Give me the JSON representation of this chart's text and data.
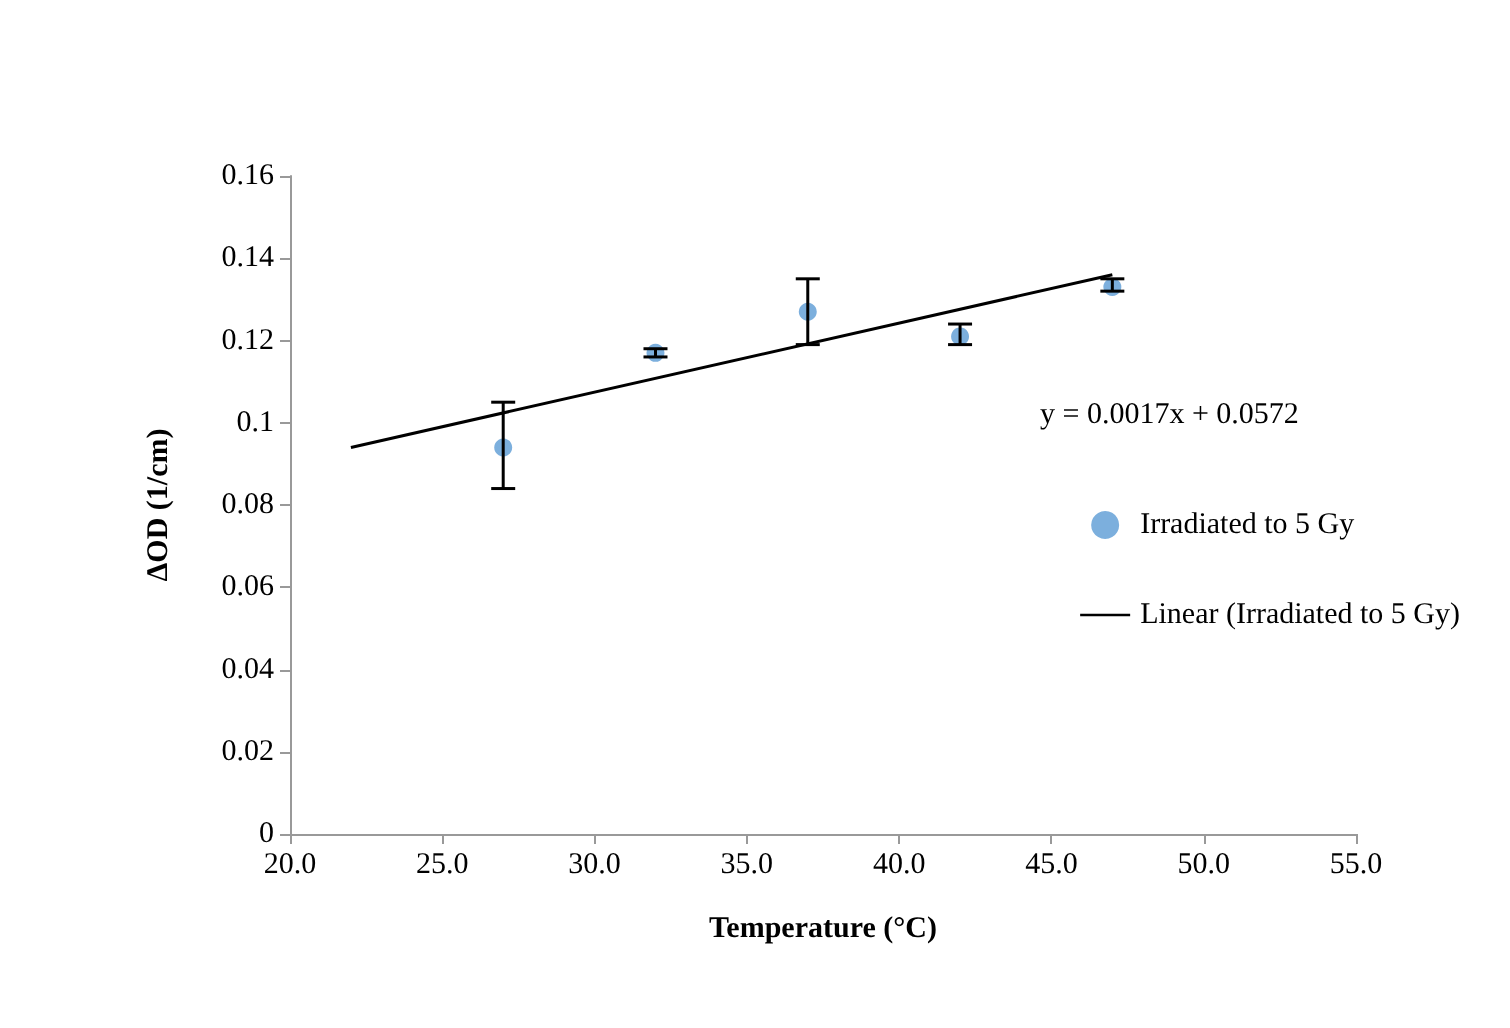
{
  "chart_data": {
    "type": "scatter",
    "xlabel": "Temperature (°C)",
    "ylabel": "ΔOD (1/cm)",
    "xlim": [
      20,
      55
    ],
    "xticks": [
      {
        "value": 20,
        "label": "20.0"
      },
      {
        "value": 25,
        "label": "25.0"
      },
      {
        "value": 30,
        "label": "30.0"
      },
      {
        "value": 35,
        "label": "35.0"
      },
      {
        "value": 40,
        "label": "40.0"
      },
      {
        "value": 45,
        "label": "45.0"
      },
      {
        "value": 50,
        "label": "50.0"
      },
      {
        "value": 55,
        "label": "55.0"
      }
    ],
    "ylim": [
      0,
      0.16
    ],
    "yticks": [
      0,
      0.02,
      0.04,
      0.06,
      0.08,
      0.1,
      0.12,
      0.14,
      0.16
    ],
    "series": [
      {
        "name": "Irradiated to 5 Gy",
        "color": "#5b9bd5",
        "x": [
          27,
          32,
          37,
          42,
          47
        ],
        "values": [
          0.094,
          0.117,
          0.127,
          0.121,
          0.133
        ],
        "errors": [
          [
            0.084,
            0.105
          ],
          [
            0.116,
            0.118
          ],
          [
            0.119,
            0.135
          ],
          [
            0.119,
            0.124
          ],
          [
            0.132,
            0.135
          ]
        ],
        "marker": "circle"
      },
      {
        "name": "Linear (Irradiated to 5 Gy)",
        "type": "line",
        "color": "#000000",
        "x": [
          22,
          47
        ],
        "values": [
          0.094,
          0.136
        ],
        "marker": "none",
        "line_style": "solid"
      }
    ],
    "annotations": [
      "y = 0.0017x + 0.0572"
    ],
    "legend": "right",
    "grid": false
  }
}
